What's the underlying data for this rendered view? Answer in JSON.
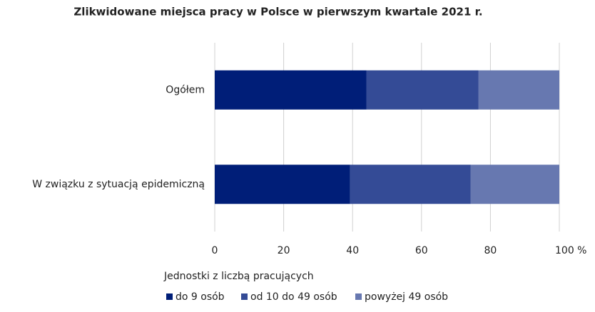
{
  "chart_data": {
    "type": "stacked-barh",
    "title": "Zlikwidowane miejsca pracy w Polsce w pierwszym kwartale 2021 r.",
    "categories": [
      "Ogółem",
      "W związku z sytuacją epidemiczną"
    ],
    "series": [
      {
        "name": "do 9 osób",
        "color": "#001e78",
        "values": [
          44,
          39.3
        ]
      },
      {
        "name": "od 10 do 49 osób",
        "color": "#344b96",
        "values": [
          32.5,
          35
        ]
      },
      {
        "name": "powyżej 49 osób",
        "color": "#6778b0",
        "values": [
          23.5,
          25.7
        ]
      }
    ],
    "xlim": [
      0,
      100
    ],
    "xticks": [
      0,
      20,
      40,
      60,
      80,
      {
        "value": 100,
        "label": "100 %"
      }
    ],
    "grid": true,
    "legend_title": "Jednostki z liczbą pracujących",
    "legend": "bottom"
  }
}
